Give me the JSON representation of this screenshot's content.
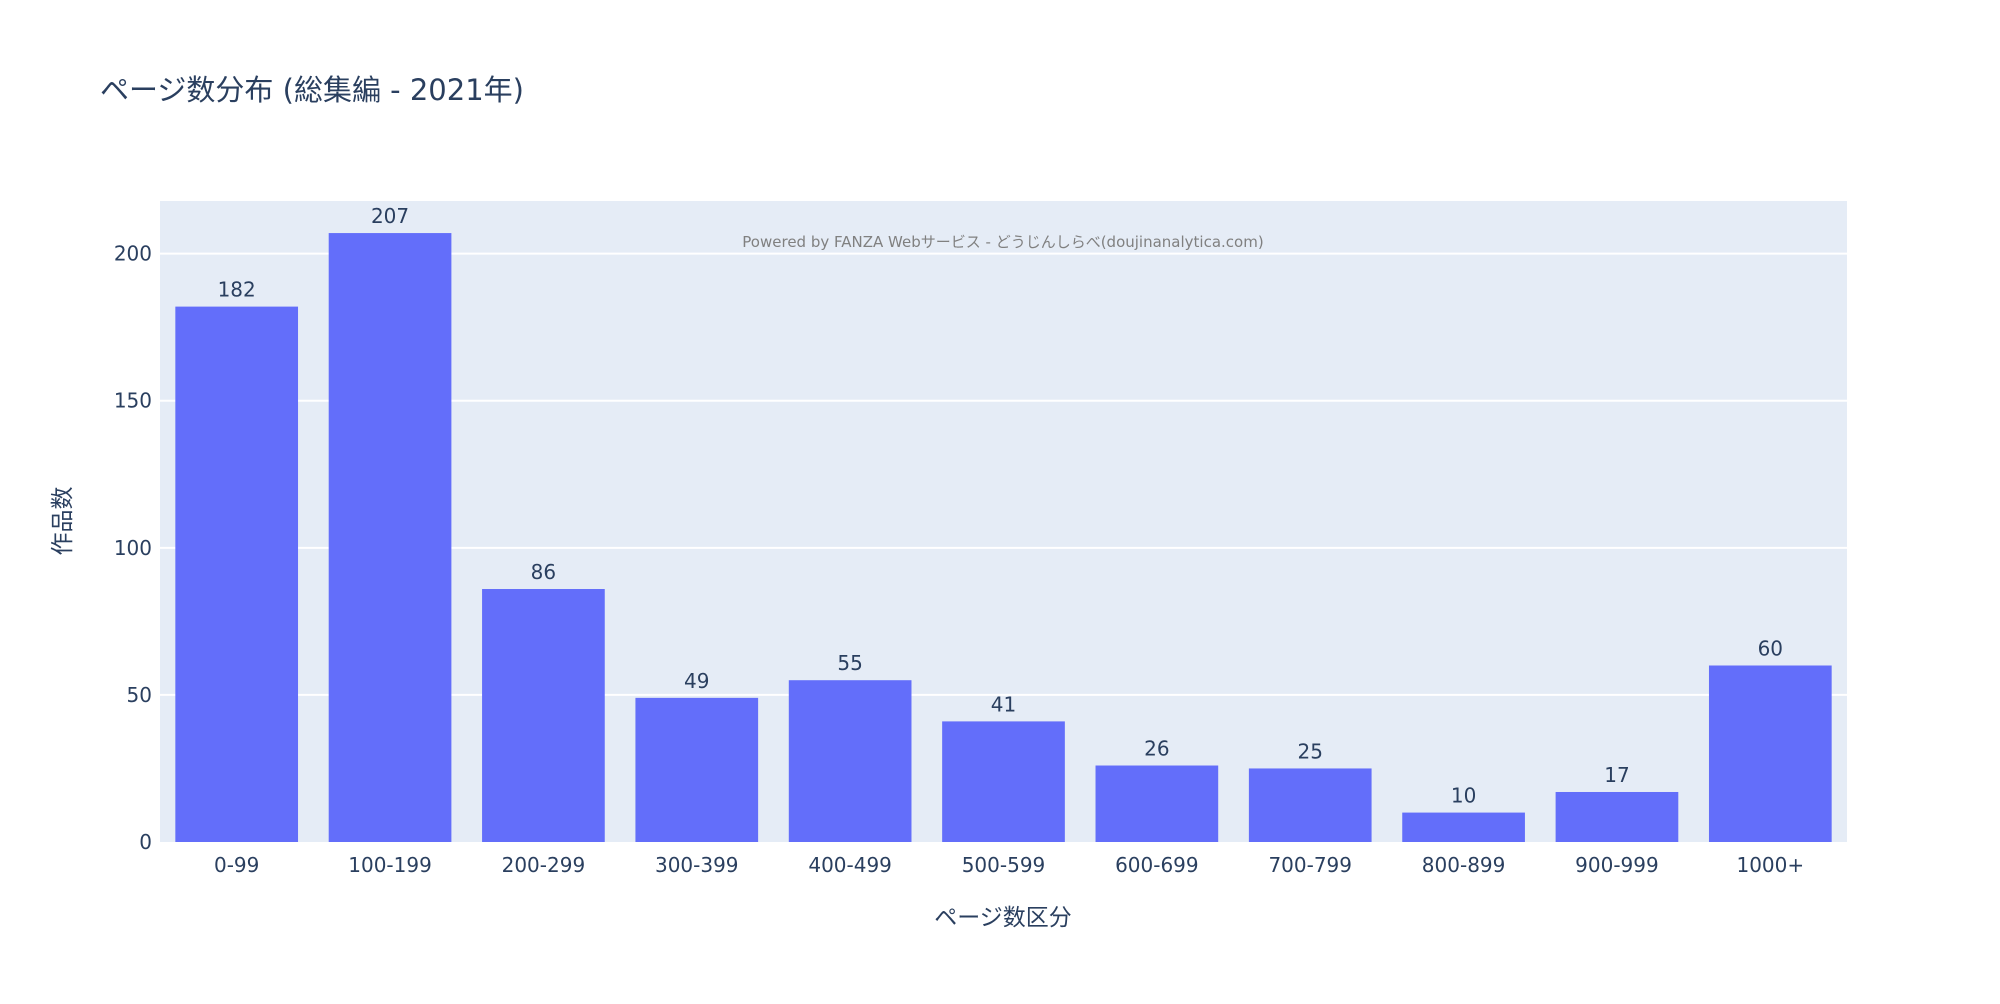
{
  "chart_data": {
    "type": "bar",
    "title": "ページ数分布 (総集編 - 2021年)",
    "xlabel": "ページ数区分",
    "ylabel": "作品数",
    "categories": [
      "0-99",
      "100-199",
      "200-299",
      "300-399",
      "400-499",
      "500-599",
      "600-699",
      "700-799",
      "800-899",
      "900-999",
      "1000+"
    ],
    "values": [
      182,
      207,
      86,
      49,
      55,
      41,
      26,
      25,
      10,
      17,
      60
    ],
    "ylim": [
      0,
      217.9
    ],
    "yticks": [
      0,
      50,
      100,
      150,
      200
    ],
    "grid": true,
    "annotation": "Powered by FANZA Webサービス - どうじんしらべ(doujinanalytica.com)",
    "colors": {
      "bar": "#636efa",
      "plot_bg": "#e5ecf6",
      "text": "#2a3f5f",
      "annotation": "#808080"
    }
  }
}
